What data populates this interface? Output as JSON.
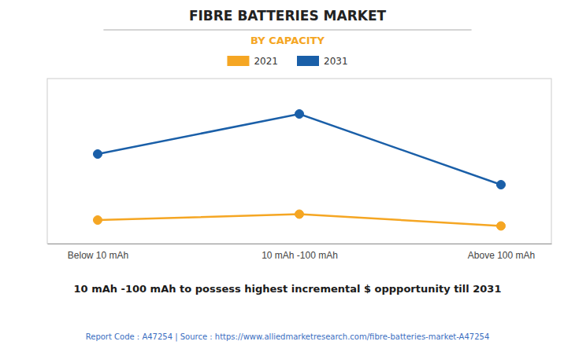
{
  "chart_data": {
    "type": "line",
    "title": "FIBRE BATTERIES MARKET",
    "subtitle": "BY CAPACITY",
    "annotation": "10 mAh -100 mAh to possess highest incremental $ oppportunity till 2031",
    "footer": "Report Code : A47254  |  Source : https://www.alliedmarketresearch.com/fibre-batteries-market-A47254",
    "categories": [
      "Below 10 mAh",
      "10 mAh -100 mAh",
      "Above 100 mAh"
    ],
    "series": [
      {
        "name": "2021",
        "color": "#F5A623",
        "values": [
          1.0,
          1.25,
          0.75
        ]
      },
      {
        "name": "2031",
        "color": "#1A5FA8",
        "values": [
          3.8,
          5.5,
          2.5
        ]
      }
    ],
    "marker": "circle",
    "ylim": [
      0,
      7
    ],
    "grid": false,
    "legend": "top",
    "tick_labels": "x"
  }
}
